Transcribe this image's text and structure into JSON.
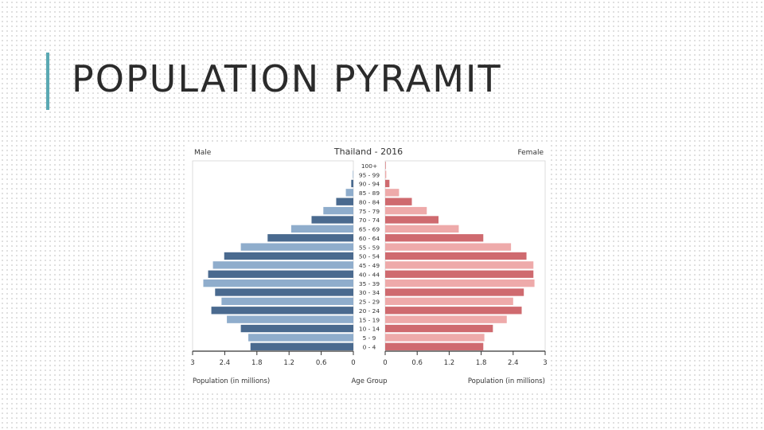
{
  "slide": {
    "title": "POPULATION PYRAMIT"
  },
  "colors": {
    "accent": "#5aa9b3",
    "male_dark": "#4a6a8f",
    "male_light": "#8fadcc",
    "female_dark": "#cf6a6f",
    "female_light": "#eeaaaa"
  },
  "chart_data": {
    "type": "bar",
    "orientation": "horizontal",
    "layout": "population-pyramid",
    "title": "Thailand - 2016",
    "left_label": "Male",
    "right_label": "Female",
    "xlabel_left": "Population (in millions)",
    "xlabel_right": "Population (in millions)",
    "center_label": "Age Group",
    "xlim": [
      0,
      3
    ],
    "xticks": [
      "3",
      "2.4",
      "1.8",
      "1.2",
      "0.6",
      "0",
      "0",
      "0.6",
      "1.2",
      "1.8",
      "2.4",
      "3"
    ],
    "categories": [
      "100+",
      "95 - 99",
      "90 - 94",
      "85 - 89",
      "80 - 84",
      "75 - 79",
      "70 - 74",
      "65 - 69",
      "60 - 64",
      "55 - 59",
      "50 - 54",
      "45 - 49",
      "40 - 44",
      "35 - 39",
      "30 - 34",
      "25 - 29",
      "20 - 24",
      "15 - 19",
      "10 - 14",
      "5 - 9",
      "0 - 4"
    ],
    "series": [
      {
        "name": "Male",
        "values": [
          0.0,
          0.01,
          0.04,
          0.14,
          0.32,
          0.56,
          0.78,
          1.16,
          1.6,
          2.1,
          2.41,
          2.62,
          2.71,
          2.8,
          2.58,
          2.46,
          2.65,
          2.36,
          2.1,
          1.96,
          1.92
        ]
      },
      {
        "name": "Female",
        "values": [
          0.01,
          0.02,
          0.08,
          0.26,
          0.5,
          0.78,
          1.0,
          1.38,
          1.84,
          2.36,
          2.65,
          2.78,
          2.78,
          2.8,
          2.6,
          2.4,
          2.56,
          2.28,
          2.02,
          1.86,
          1.84
        ]
      }
    ]
  }
}
